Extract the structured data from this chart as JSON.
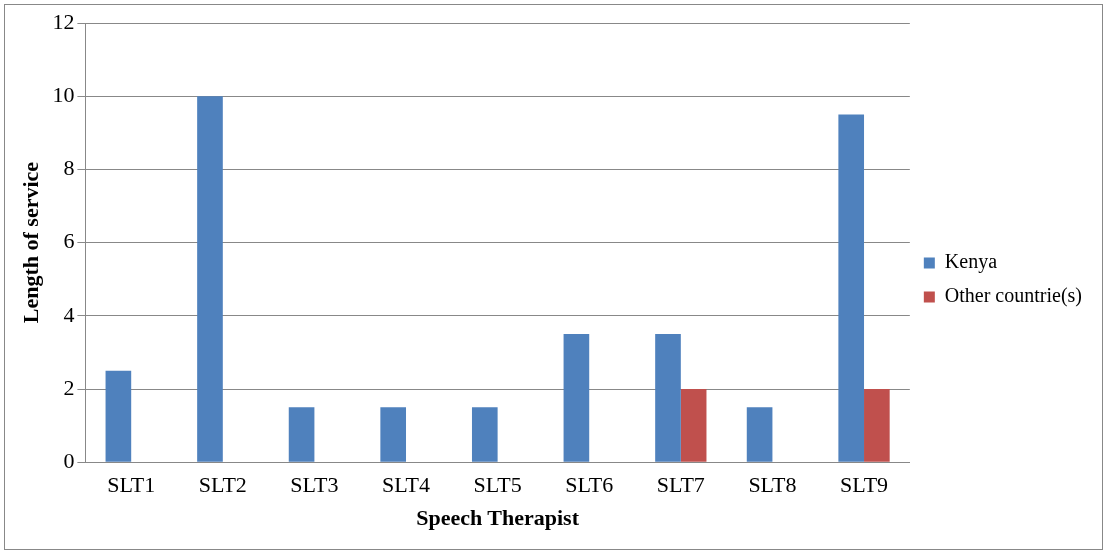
{
  "chart_data": {
    "type": "bar",
    "xlabel": "Speech Therapist",
    "ylabel": "Length of service",
    "categories": [
      "SLT1",
      "SLT2",
      "SLT3",
      "SLT4",
      "SLT5",
      "SLT6",
      "SLT7",
      "SLT8",
      "SLT9"
    ],
    "series": [
      {
        "name": "Kenya",
        "color": "#4f81bd",
        "values": [
          2.5,
          10,
          1.5,
          1.5,
          1.5,
          3.5,
          3.5,
          1.5,
          9.5
        ]
      },
      {
        "name": "Other countrie(s)",
        "color": "#c0504d",
        "values": [
          null,
          null,
          null,
          null,
          null,
          null,
          2,
          null,
          2
        ]
      }
    ],
    "ylim": [
      0,
      12
    ],
    "yticks": [
      0,
      2,
      4,
      6,
      8,
      10,
      12
    ],
    "grid": "y",
    "legend": "right"
  }
}
